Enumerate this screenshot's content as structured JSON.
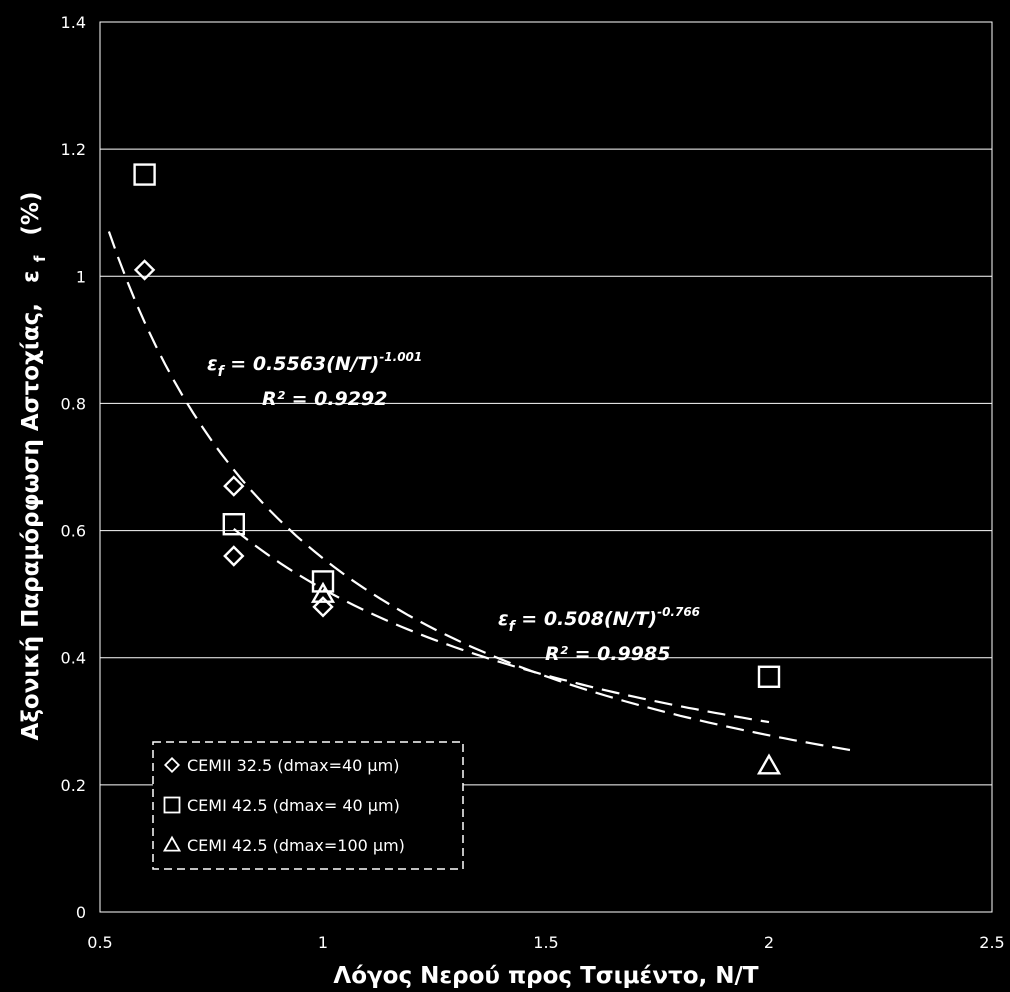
{
  "chart_data": {
    "type": "scatter",
    "xlabel": "Λόγος Νερού προς Τσιμέντο, Ν/Τ",
    "ylabel_main": "Αξονική Παραμόρφωση Αστοχίας,",
    "ylabel_symbol": "ε",
    "ylabel_subscript": "f",
    "ylabel_unit": "(%)",
    "xlim": [
      0.5,
      2.5
    ],
    "ylim": [
      0,
      1.4
    ],
    "xticks": [
      "0.5",
      "1",
      "1.5",
      "2",
      "2.5"
    ],
    "xtick_values": [
      0.5,
      1,
      1.5,
      2,
      2.5
    ],
    "yticks": [
      "0",
      "0.2",
      "0.4",
      "0.6",
      "0.8",
      "1",
      "1.2",
      "1.4"
    ],
    "ytick_values": [
      0,
      0.2,
      0.4,
      0.6,
      0.8,
      1.0,
      1.2,
      1.4
    ],
    "grid": "horizontal",
    "legend_position": "bottom-left",
    "series": [
      {
        "name": "CEMII 32.5 (dmax=40 μm)",
        "marker": "diamond",
        "x": [
          0.6,
          0.8,
          0.8,
          1.0
        ],
        "y": [
          1.01,
          0.67,
          0.56,
          0.48
        ]
      },
      {
        "name": "CEMI 42.5 (dmax= 40 μm)",
        "marker": "square",
        "x": [
          0.6,
          0.8,
          1.0,
          2.0
        ],
        "y": [
          1.16,
          0.61,
          0.52,
          0.37
        ]
      },
      {
        "name": "CEMI 42.5 (dmax=100 μm)",
        "marker": "triangle",
        "x": [
          1.0,
          2.0
        ],
        "y": [
          0.5,
          0.23
        ]
      }
    ],
    "fits": [
      {
        "coefficient": 0.5563,
        "exponent": -1.001,
        "x_range": [
          0.52,
          2.2
        ],
        "dash": "long",
        "equation_main": "ε",
        "equation_sub": "f",
        "equation_rest": " = 0.5563(N/T)",
        "equation_exp": "-1.001",
        "r2_label": "R² = 0.9292"
      },
      {
        "coefficient": 0.508,
        "exponent": -0.766,
        "x_range": [
          0.8,
          2.0
        ],
        "dash": "long",
        "equation_main": "ε",
        "equation_sub": "f",
        "equation_rest": " = 0.508(N/T)",
        "equation_exp": "-0.766",
        "r2_label": "R² = 0.9985"
      }
    ]
  }
}
